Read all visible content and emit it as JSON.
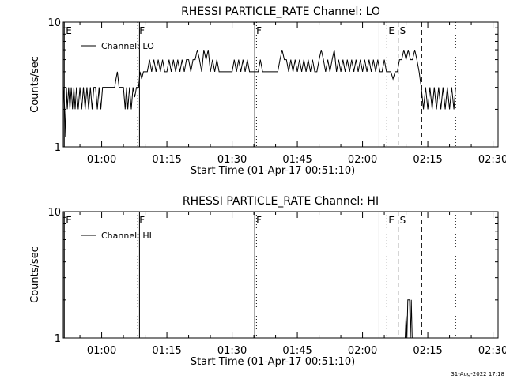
{
  "footer": {
    "timestamp": "31-Aug-2022 17:18"
  },
  "chart_data": [
    {
      "type": "line",
      "title": "RHESSI PARTICLE_RATE Channel: LO",
      "xlabel": "Start Time (01-Apr-17 00:51:10)",
      "ylabel": "Counts/sec",
      "yscale": "log",
      "ylim": [
        1,
        10
      ],
      "xlim_minutes": [
        51.17,
        151.17
      ],
      "x_ticks": [
        "01:00",
        "01:15",
        "01:30",
        "01:45",
        "02:00",
        "02:15",
        "02:30"
      ],
      "x_tick_minutes": [
        60,
        75,
        90,
        105,
        120,
        135,
        150
      ],
      "y_ticks": [
        "1",
        "10"
      ],
      "legend": {
        "label": "Channel: LO",
        "position": "top-left"
      },
      "markers": [
        {
          "minute": 51.4,
          "label": "E",
          "style": "solid"
        },
        {
          "minute": 68.3,
          "label": "F",
          "style": "dotted"
        },
        {
          "minute": 68.7,
          "label": "",
          "style": "solid"
        },
        {
          "minute": 95.2,
          "label": "F",
          "style": "solid"
        },
        {
          "minute": 95.6,
          "label": "",
          "style": "dotted"
        },
        {
          "minute": 123.8,
          "label": "",
          "style": "solid"
        },
        {
          "minute": 125.6,
          "label": "E",
          "style": "dotted"
        },
        {
          "minute": 128.2,
          "label": "S",
          "style": "dashed"
        },
        {
          "minute": 133.6,
          "label": "",
          "style": "dashed"
        },
        {
          "minute": 141.4,
          "label": "",
          "style": "dotted"
        }
      ],
      "series": [
        {
          "values": [
            [
              51.2,
              3
            ],
            [
              51.5,
              2
            ],
            [
              51.7,
              1.2
            ],
            [
              51.9,
              3
            ],
            [
              52.1,
              2
            ],
            [
              52.4,
              3
            ],
            [
              52.7,
              2
            ],
            [
              53,
              3
            ],
            [
              53.3,
              2
            ],
            [
              53.6,
              3
            ],
            [
              53.9,
              2
            ],
            [
              54.2,
              3
            ],
            [
              54.6,
              2
            ],
            [
              55,
              3
            ],
            [
              55.4,
              2
            ],
            [
              55.8,
              3
            ],
            [
              56.2,
              2
            ],
            [
              56.6,
              3
            ],
            [
              57,
              2
            ],
            [
              57.4,
              3
            ],
            [
              57.8,
              2
            ],
            [
              58.2,
              3
            ],
            [
              58.6,
              3
            ],
            [
              59,
              2
            ],
            [
              59.4,
              3
            ],
            [
              59.8,
              2
            ],
            [
              60.2,
              3
            ],
            [
              60.8,
              3
            ],
            [
              61.5,
              3
            ],
            [
              62,
              3
            ],
            [
              62.5,
              3
            ],
            [
              63,
              3
            ],
            [
              63.3,
              3.5
            ],
            [
              63.6,
              4
            ],
            [
              64,
              3
            ],
            [
              64.5,
              3
            ],
            [
              65,
              3
            ],
            [
              65.4,
              2
            ],
            [
              65.7,
              3
            ],
            [
              66,
              2
            ],
            [
              66.4,
              3
            ],
            [
              66.8,
              2
            ],
            [
              67.2,
              3
            ],
            [
              67.6,
              2.5
            ],
            [
              68,
              3
            ],
            [
              68.5,
              3
            ],
            [
              68.8,
              4
            ],
            [
              69.2,
              3.5
            ],
            [
              69.6,
              4
            ],
            [
              70,
              4
            ],
            [
              70.5,
              4
            ],
            [
              71,
              5
            ],
            [
              71.5,
              4
            ],
            [
              72,
              5
            ],
            [
              72.5,
              4
            ],
            [
              73,
              5
            ],
            [
              73.5,
              4
            ],
            [
              74,
              5
            ],
            [
              74.5,
              4
            ],
            [
              75,
              4
            ],
            [
              75.5,
              5
            ],
            [
              76,
              4
            ],
            [
              76.5,
              5
            ],
            [
              77,
              4
            ],
            [
              77.5,
              5
            ],
            [
              78,
              4
            ],
            [
              78.5,
              5
            ],
            [
              79,
              4
            ],
            [
              79.5,
              5
            ],
            [
              80,
              5
            ],
            [
              80.5,
              4
            ],
            [
              81,
              5
            ],
            [
              81.5,
              5
            ],
            [
              82,
              6
            ],
            [
              82.5,
              5
            ],
            [
              83,
              4
            ],
            [
              83.5,
              6
            ],
            [
              84,
              5
            ],
            [
              84.5,
              6
            ],
            [
              85,
              4
            ],
            [
              85.5,
              5
            ],
            [
              86,
              4
            ],
            [
              86.5,
              5
            ],
            [
              87,
              4
            ],
            [
              87.5,
              4
            ],
            [
              88,
              4
            ],
            [
              88.5,
              4
            ],
            [
              89,
              4
            ],
            [
              89.5,
              4
            ],
            [
              90,
              4
            ],
            [
              90.5,
              5
            ],
            [
              91,
              4
            ],
            [
              91.5,
              5
            ],
            [
              92,
              4
            ],
            [
              92.5,
              5
            ],
            [
              93,
              4
            ],
            [
              93.5,
              5
            ],
            [
              94,
              4
            ],
            [
              94.5,
              4
            ],
            [
              95,
              4
            ],
            [
              95.5,
              4
            ],
            [
              96,
              4
            ],
            [
              96.5,
              5
            ],
            [
              97,
              4
            ],
            [
              97.5,
              4
            ],
            [
              98,
              4
            ],
            [
              98.5,
              4
            ],
            [
              99,
              4
            ],
            [
              99.5,
              4
            ],
            [
              100,
              4
            ],
            [
              100.5,
              4
            ],
            [
              101,
              5
            ],
            [
              101.5,
              6
            ],
            [
              102,
              5
            ],
            [
              102.5,
              5
            ],
            [
              103,
              4
            ],
            [
              103.5,
              5
            ],
            [
              104,
              4
            ],
            [
              104.5,
              5
            ],
            [
              105,
              4
            ],
            [
              105.5,
              5
            ],
            [
              106,
              4
            ],
            [
              106.5,
              5
            ],
            [
              107,
              4
            ],
            [
              107.5,
              5
            ],
            [
              108,
              4
            ],
            [
              108.5,
              5
            ],
            [
              109,
              4
            ],
            [
              109.5,
              4
            ],
            [
              110,
              5
            ],
            [
              110.5,
              6
            ],
            [
              111,
              5
            ],
            [
              111.5,
              4
            ],
            [
              112,
              5
            ],
            [
              112.5,
              4
            ],
            [
              113,
              5
            ],
            [
              113.5,
              6
            ],
            [
              114,
              4
            ],
            [
              114.5,
              5
            ],
            [
              115,
              4
            ],
            [
              115.5,
              5
            ],
            [
              116,
              4
            ],
            [
              116.5,
              5
            ],
            [
              117,
              4
            ],
            [
              117.5,
              5
            ],
            [
              118,
              4
            ],
            [
              118.5,
              5
            ],
            [
              119,
              4
            ],
            [
              119.5,
              5
            ],
            [
              120,
              4
            ],
            [
              120.5,
              5
            ],
            [
              121,
              4
            ],
            [
              121.5,
              5
            ],
            [
              122,
              4
            ],
            [
              122.5,
              5
            ],
            [
              123,
              4
            ],
            [
              123.5,
              5
            ],
            [
              124,
              4
            ],
            [
              124.5,
              4
            ],
            [
              125,
              5
            ],
            [
              125.5,
              4
            ],
            [
              126,
              4
            ],
            [
              126.5,
              4
            ],
            [
              127,
              3.5
            ],
            [
              127.5,
              4
            ],
            [
              128,
              4
            ],
            [
              128.5,
              5
            ],
            [
              129,
              5
            ],
            [
              129.5,
              6
            ],
            [
              130,
              5
            ],
            [
              130.5,
              6
            ],
            [
              131,
              5
            ],
            [
              131.5,
              5
            ],
            [
              132,
              6
            ],
            [
              132.5,
              5
            ],
            [
              133,
              4
            ],
            [
              133.5,
              3
            ],
            [
              134,
              2
            ],
            [
              134.5,
              3
            ],
            [
              135,
              2
            ],
            [
              135.5,
              3
            ],
            [
              136,
              2
            ],
            [
              136.5,
              3
            ],
            [
              137,
              2
            ],
            [
              137.5,
              3
            ],
            [
              138,
              2
            ],
            [
              138.5,
              3
            ],
            [
              139,
              2
            ],
            [
              139.5,
              3
            ],
            [
              140,
              2
            ],
            [
              140.5,
              3
            ],
            [
              141,
              2
            ],
            [
              141.4,
              3
            ]
          ]
        }
      ]
    },
    {
      "type": "line",
      "title": "RHESSI PARTICLE_RATE Channel: HI",
      "xlabel": "Start Time (01-Apr-17 00:51:10)",
      "ylabel": "Counts/sec",
      "yscale": "log",
      "ylim": [
        1,
        10
      ],
      "xlim_minutes": [
        51.17,
        151.17
      ],
      "x_ticks": [
        "01:00",
        "01:15",
        "01:30",
        "01:45",
        "02:00",
        "02:15",
        "02:30"
      ],
      "x_tick_minutes": [
        60,
        75,
        90,
        105,
        120,
        135,
        150
      ],
      "y_ticks": [
        "1",
        "10"
      ],
      "legend": {
        "label": "Channel: HI",
        "position": "top-left"
      },
      "markers": [
        {
          "minute": 51.4,
          "label": "E",
          "style": "solid"
        },
        {
          "minute": 68.3,
          "label": "F",
          "style": "dotted"
        },
        {
          "minute": 68.7,
          "label": "",
          "style": "solid"
        },
        {
          "minute": 95.2,
          "label": "F",
          "style": "solid"
        },
        {
          "minute": 95.6,
          "label": "",
          "style": "dotted"
        },
        {
          "minute": 123.8,
          "label": "",
          "style": "solid"
        },
        {
          "minute": 125.6,
          "label": "E",
          "style": "dotted"
        },
        {
          "minute": 128.2,
          "label": "S",
          "style": "dashed"
        },
        {
          "minute": 133.6,
          "label": "",
          "style": "dashed"
        },
        {
          "minute": 141.4,
          "label": "",
          "style": "dotted"
        }
      ],
      "series": [
        {
          "values": [
            [
              129.8,
              1
            ],
            [
              130.0,
              1.5
            ],
            [
              130.2,
              1
            ],
            [
              130.4,
              2
            ],
            [
              130.6,
              2
            ],
            [
              130.8,
              2
            ],
            [
              131.0,
              1
            ],
            [
              131.2,
              2
            ],
            [
              131.4,
              1
            ],
            [
              131.6,
              1
            ]
          ]
        }
      ]
    }
  ]
}
